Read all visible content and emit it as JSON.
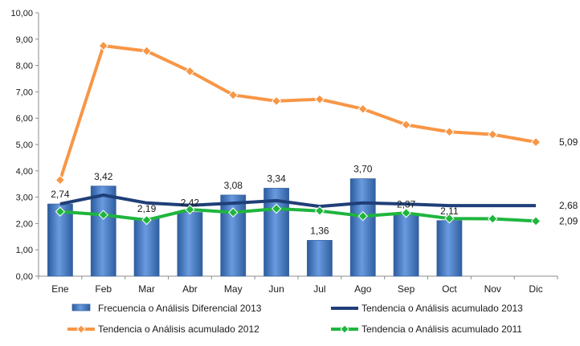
{
  "chart_data": {
    "type": "bar",
    "categories": [
      "Ene",
      "Feb",
      "Mar",
      "Abr",
      "May",
      "Jun",
      "Jul",
      "Ago",
      "Sep",
      "Oct",
      "Nov",
      "Dic"
    ],
    "ylim": [
      0,
      10
    ],
    "y_ticks": [
      "0,00",
      "1,00",
      "2,00",
      "3,00",
      "4,00",
      "5,00",
      "6,00",
      "7,00",
      "8,00",
      "9,00",
      "10,00"
    ],
    "grid": false,
    "legend_position": "bottom",
    "series": [
      {
        "name": "Frecuencia o Análisis Diferencial 2013",
        "kind": "bar",
        "color": "#4f81bd",
        "values": [
          2.74,
          3.42,
          2.19,
          2.42,
          3.08,
          3.34,
          1.36,
          3.7,
          2.37,
          2.11,
          null,
          null
        ],
        "labels": [
          "2,74",
          "3,42",
          "2,19",
          "2,42",
          "3,08",
          "3,34",
          "1,36",
          "3,70",
          "2,37",
          "2,11",
          "",
          ""
        ]
      },
      {
        "name": "Tendencia o Análisis acumulado 2013",
        "kind": "line",
        "color": "#1f3f78",
        "marker": "none",
        "values": [
          2.74,
          3.08,
          2.78,
          2.69,
          2.77,
          2.87,
          2.65,
          2.78,
          2.74,
          2.68,
          2.68,
          2.68
        ],
        "end_label": "2,68"
      },
      {
        "name": "Tendencia o Análisis acumulado 2012",
        "kind": "line",
        "color": "#f79646",
        "marker": "diamond",
        "values": [
          3.65,
          8.75,
          8.55,
          7.78,
          6.88,
          6.65,
          6.72,
          6.35,
          5.75,
          5.48,
          5.38,
          5.09
        ],
        "end_label": "5,09"
      },
      {
        "name": "Tendencia o Análisis acumulado 2011",
        "kind": "line",
        "color": "#1fb53e",
        "marker": "diamond",
        "values": [
          2.45,
          2.33,
          2.13,
          2.53,
          2.42,
          2.56,
          2.48,
          2.28,
          2.4,
          2.19,
          2.18,
          2.09
        ],
        "end_label": "2,09"
      }
    ]
  }
}
